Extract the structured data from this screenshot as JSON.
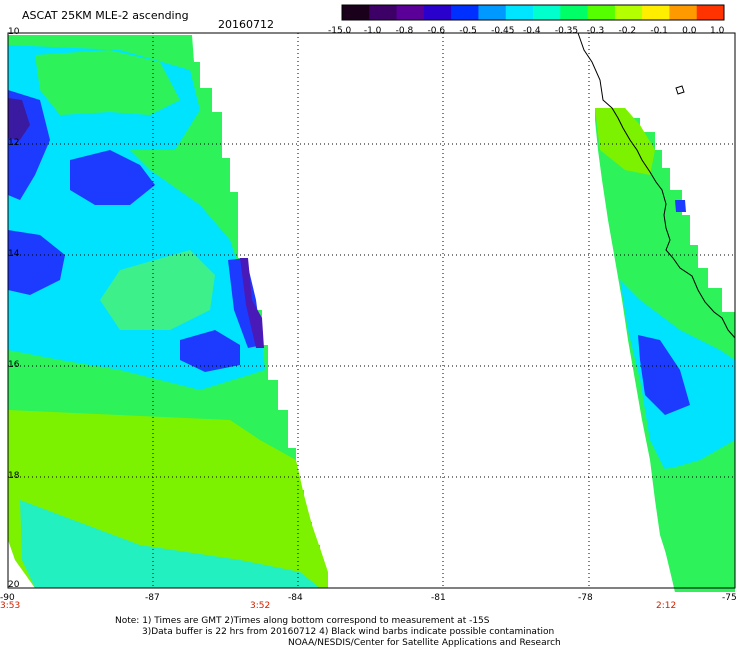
{
  "header": {
    "title": "ASCAT 25KM MLE-2 ascending",
    "date": "20160712"
  },
  "colorbar": {
    "labels": [
      "-15.0",
      "-1.0",
      "-0.8",
      "-0.6",
      "-0.5",
      "-0.45",
      "-0.4",
      "-0.35",
      "-0.3",
      "-0.2",
      "-0.1",
      "0.0",
      "1.0"
    ],
    "colors": [
      "#1a001a",
      "#3c0066",
      "#5a0099",
      "#2a00cc",
      "#0030ff",
      "#0099ff",
      "#00e5ff",
      "#00ffcc",
      "#00ff66",
      "#55ff00",
      "#b4ff00",
      "#ffee00",
      "#ff9900",
      "#ff3300"
    ]
  },
  "axes": {
    "lat_labels": [
      "10",
      "12",
      "14",
      "16",
      "18",
      "20"
    ],
    "lon_labels": [
      "-90",
      "-87",
      "-84",
      "-81",
      "-78",
      "-75"
    ]
  },
  "times": {
    "t1": "3:53",
    "t2": "3:52",
    "t3": "2:12"
  },
  "notes": {
    "line1": "Note: 1) Times are GMT 2)Times along bottom correspond to measurement at -15S",
    "line2": "3)Data buffer is 22 hrs from 20160712 4) Black wind barbs indicate possible contamination",
    "line3": "NOAA/NESDIS/Center for Satellite Applications and Research"
  }
}
